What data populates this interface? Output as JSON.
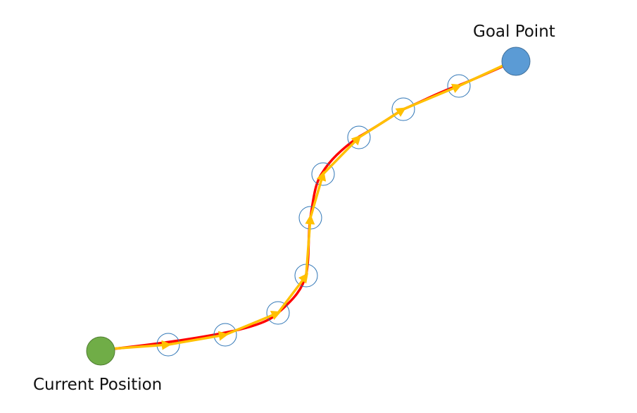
{
  "labels": {
    "goal": "Goal Point",
    "current": "Current Position"
  },
  "colors": {
    "start_fill": "#70ad47",
    "start_stroke": "#507e32",
    "goal_fill": "#5b9bd5",
    "goal_stroke": "#41719c",
    "waypoint_stroke": "#2e75b6",
    "path_curve": "#ff0000",
    "path_arrows": "#ffc000"
  },
  "diagram": {
    "start": "current-position",
    "end": "goal-point",
    "waypoint_count": 9
  }
}
